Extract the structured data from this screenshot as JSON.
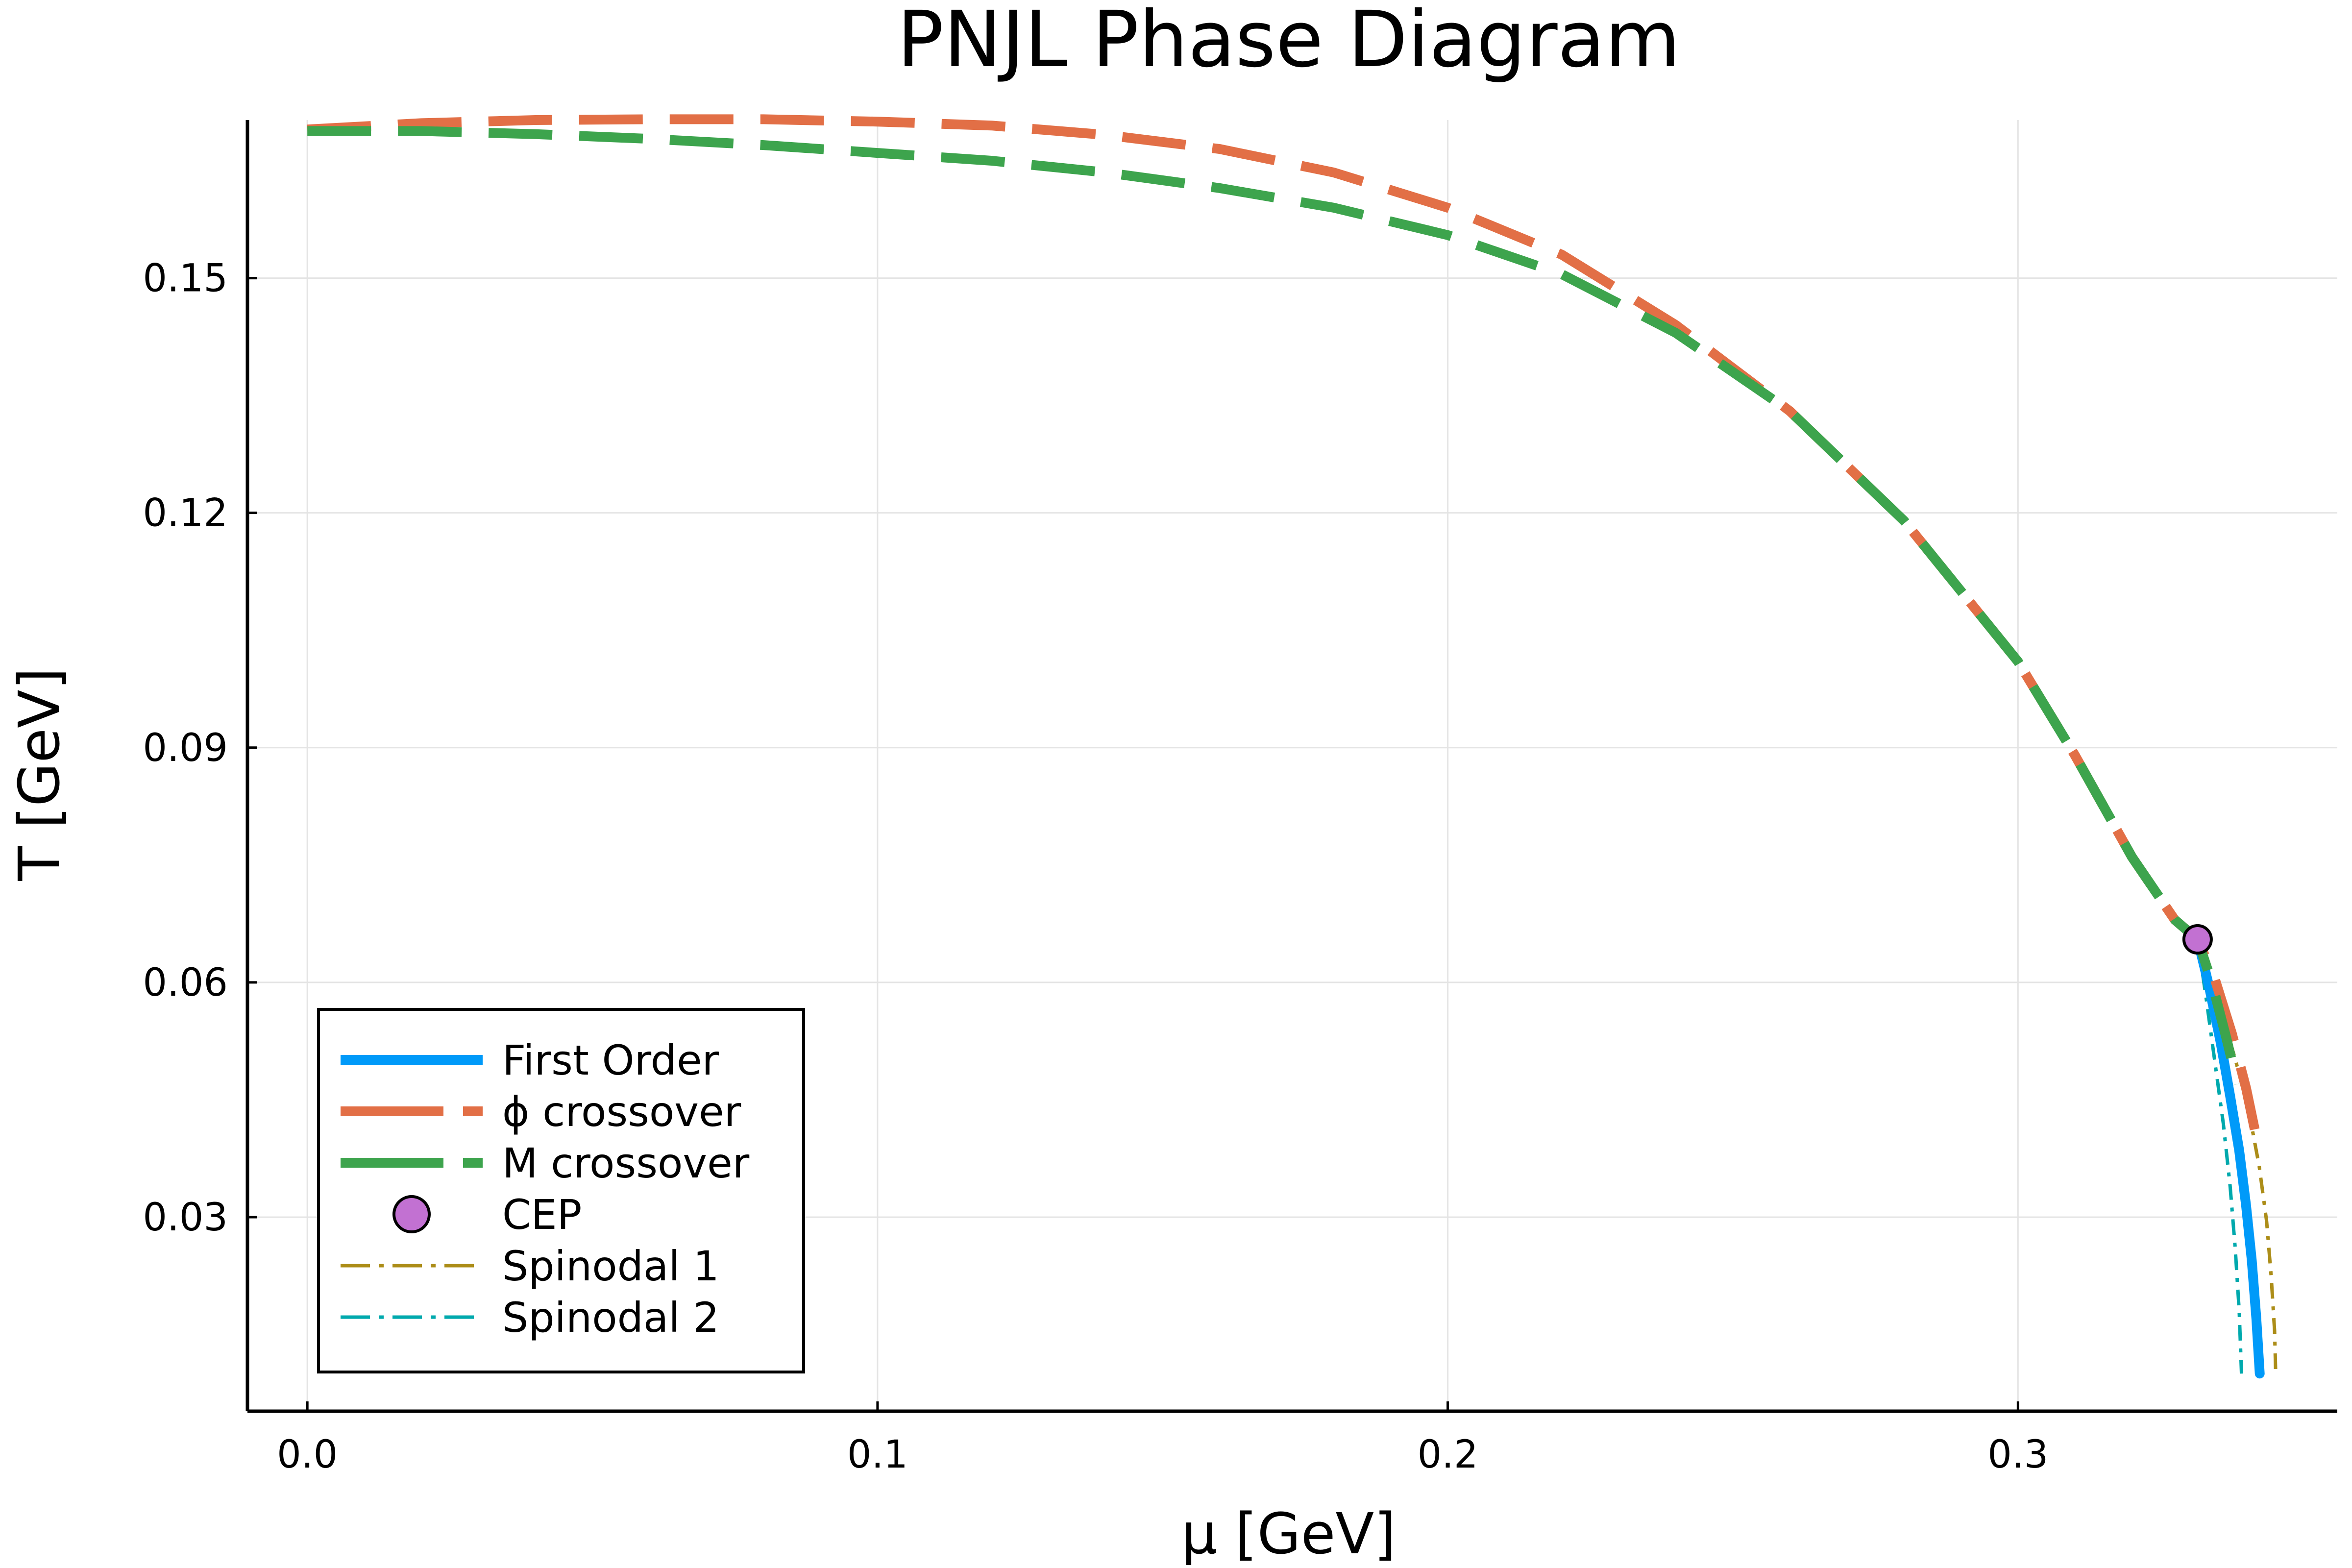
{
  "chart_data": {
    "type": "line",
    "title": "PNJL Phase Diagram",
    "xlabel": "μ [GeV]",
    "ylabel": "T [GeV]",
    "xlim": [
      -0.0105,
      0.356
    ],
    "ylim": [
      0.0052,
      0.1702
    ],
    "xticks": [
      0.0,
      0.1,
      0.2,
      0.3
    ],
    "xtick_labels": [
      "0.0",
      "0.1",
      "0.2",
      "0.3"
    ],
    "yticks": [
      0.03,
      0.06,
      0.09,
      0.12,
      0.15
    ],
    "ytick_labels": [
      "0.03",
      "0.06",
      "0.09",
      "0.12",
      "0.15"
    ],
    "grid": true,
    "legend_position": "bottom-left",
    "series": [
      {
        "name": "First Order",
        "style": "solid",
        "color": "#009af9",
        "points": [
          [
            0.3315,
            0.0655
          ],
          [
            0.3335,
            0.0595
          ],
          [
            0.3355,
            0.0525
          ],
          [
            0.3372,
            0.0455
          ],
          [
            0.3388,
            0.0385
          ],
          [
            0.34,
            0.0315
          ],
          [
            0.341,
            0.0245
          ],
          [
            0.3418,
            0.017
          ],
          [
            0.3424,
            0.01
          ]
        ]
      },
      {
        "name": "ϕ crossover",
        "style": "dashed",
        "color": "#e26f46",
        "points": [
          [
            0.0,
            0.169
          ],
          [
            0.02,
            0.1698
          ],
          [
            0.04,
            0.1702
          ],
          [
            0.06,
            0.1703
          ],
          [
            0.08,
            0.1703
          ],
          [
            0.1,
            0.17
          ],
          [
            0.12,
            0.1695
          ],
          [
            0.14,
            0.1683
          ],
          [
            0.16,
            0.1665
          ],
          [
            0.18,
            0.1635
          ],
          [
            0.2,
            0.159
          ],
          [
            0.22,
            0.153
          ],
          [
            0.24,
            0.144
          ],
          [
            0.26,
            0.133
          ],
          [
            0.28,
            0.119
          ],
          [
            0.3,
            0.101
          ],
          [
            0.31,
            0.089
          ],
          [
            0.32,
            0.076
          ],
          [
            0.3275,
            0.068
          ],
          [
            0.3315,
            0.0655
          ],
          [
            0.3345,
            0.0605
          ],
          [
            0.3375,
            0.0535
          ],
          [
            0.34,
            0.0465
          ],
          [
            0.342,
            0.0395
          ]
        ]
      },
      {
        "name": "M crossover",
        "style": "dashed",
        "color": "#3da44d",
        "points": [
          [
            0.0,
            0.1688
          ],
          [
            0.02,
            0.1688
          ],
          [
            0.04,
            0.1684
          ],
          [
            0.06,
            0.1678
          ],
          [
            0.08,
            0.167
          ],
          [
            0.1,
            0.166
          ],
          [
            0.12,
            0.165
          ],
          [
            0.14,
            0.1635
          ],
          [
            0.16,
            0.1615
          ],
          [
            0.18,
            0.159
          ],
          [
            0.2,
            0.1555
          ],
          [
            0.22,
            0.1505
          ],
          [
            0.24,
            0.143
          ],
          [
            0.26,
            0.133
          ],
          [
            0.28,
            0.119
          ],
          [
            0.3,
            0.101
          ],
          [
            0.31,
            0.089
          ],
          [
            0.32,
            0.076
          ],
          [
            0.3275,
            0.068
          ],
          [
            0.3315,
            0.0655
          ],
          [
            0.334,
            0.06
          ],
          [
            0.3365,
            0.053
          ],
          [
            0.3385,
            0.047
          ]
        ]
      },
      {
        "name": "CEP",
        "style": "marker",
        "color": "#c271d2",
        "points": [
          [
            0.3315,
            0.0655
          ]
        ]
      },
      {
        "name": "Spinodal 1",
        "style": "dashdot",
        "color": "#ac8d18",
        "points": [
          [
            0.3315,
            0.0655
          ],
          [
            0.335,
            0.0575
          ],
          [
            0.338,
            0.0505
          ],
          [
            0.3405,
            0.0435
          ],
          [
            0.3423,
            0.0365
          ],
          [
            0.3436,
            0.0295
          ],
          [
            0.3444,
            0.0225
          ],
          [
            0.345,
            0.0155
          ],
          [
            0.3452,
            0.01
          ]
        ]
      },
      {
        "name": "Spinodal 2",
        "style": "dashdot",
        "color": "#00a9ad",
        "points": [
          [
            0.3315,
            0.0655
          ],
          [
            0.333,
            0.058
          ],
          [
            0.3345,
            0.05
          ],
          [
            0.336,
            0.042
          ],
          [
            0.3372,
            0.034
          ],
          [
            0.3381,
            0.026
          ],
          [
            0.3388,
            0.018
          ],
          [
            0.3392,
            0.01
          ]
        ]
      }
    ]
  }
}
